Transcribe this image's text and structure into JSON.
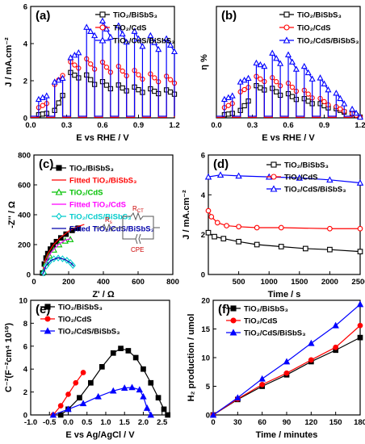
{
  "chart_data": [
    {
      "id": "a",
      "type": "line",
      "panel_label": "(a)",
      "xlabel": "E vs RHE / V",
      "ylabel": "J / mA.cm⁻²",
      "xlim": [
        0.0,
        1.2
      ],
      "ylim": [
        0,
        6
      ],
      "xticks": [
        "0.0",
        "0.3",
        "0.6",
        "0.9",
        "1.2"
      ],
      "yticks": [
        "0",
        "2",
        "4",
        "6"
      ],
      "legend_position": "top-right",
      "chopped_light": true,
      "series": [
        {
          "name": "TiO₂/BiSbS₃",
          "color": "#000000",
          "marker": "square",
          "x": [
            0.0,
            0.2,
            0.35,
            0.5,
            0.62,
            0.75,
            0.88,
            1.02,
            1.15,
            1.2
          ],
          "y": [
            0.05,
            0.4,
            2.7,
            2.2,
            1.9,
            1.75,
            1.65,
            1.55,
            1.5,
            1.5
          ]
        },
        {
          "name": "TiO₂/CdS",
          "color": "#ff0000",
          "marker": "circle",
          "x": [
            0.0,
            0.15,
            0.25,
            0.35,
            0.45,
            0.6,
            0.75,
            0.9,
            1.05,
            1.2
          ],
          "y": [
            0.2,
            1.0,
            2.6,
            3.1,
            3.2,
            3.0,
            2.75,
            2.5,
            2.3,
            2.2
          ]
        },
        {
          "name": "TiO₂/CdS/BiSbS₃",
          "color": "#0000ff",
          "marker": "triangle",
          "x": [
            0.0,
            0.15,
            0.3,
            0.45,
            0.55,
            0.68,
            0.8,
            0.95,
            1.1,
            1.2
          ],
          "y": [
            0.6,
            1.5,
            2.8,
            4.8,
            5.3,
            5.1,
            4.8,
            4.5,
            4.3,
            4.2
          ]
        }
      ]
    },
    {
      "id": "b",
      "type": "line",
      "panel_label": "(b)",
      "xlabel": "E vs RHE / V",
      "ylabel": "η %",
      "xlim": [
        0.0,
        1.2
      ],
      "ylim": [
        0,
        6
      ],
      "xticks": [
        "0.0",
        "0.3",
        "0.6",
        "0.9",
        "1.2"
      ],
      "yticks": [],
      "legend_position": "top-right",
      "chopped_light": true,
      "series": [
        {
          "name": "TiO₂/BiSbS₃",
          "color": "#000000",
          "marker": "square",
          "x": [
            0.0,
            0.2,
            0.35,
            0.5,
            0.65,
            0.8,
            0.95,
            1.1,
            1.2
          ],
          "y": [
            0.05,
            0.4,
            1.9,
            1.5,
            1.2,
            0.9,
            0.6,
            0.3,
            0.05
          ]
        },
        {
          "name": "TiO₂/CdS",
          "color": "#ff0000",
          "marker": "circle",
          "x": [
            0.0,
            0.15,
            0.3,
            0.4,
            0.55,
            0.7,
            0.85,
            1.0,
            1.2
          ],
          "y": [
            0.2,
            1.0,
            2.2,
            2.3,
            2.0,
            1.6,
            1.1,
            0.6,
            0.05
          ]
        },
        {
          "name": "TiO₂/CdS/BiSbS₃",
          "color": "#0000ff",
          "marker": "triangle",
          "x": [
            0.0,
            0.15,
            0.3,
            0.45,
            0.6,
            0.75,
            0.9,
            1.05,
            1.2
          ],
          "y": [
            0.6,
            1.5,
            2.8,
            3.5,
            3.4,
            2.7,
            2.0,
            1.0,
            0.05
          ]
        }
      ]
    },
    {
      "id": "c",
      "type": "scatter",
      "panel_label": "(c)",
      "xlabel": "Z' / Ω",
      "ylabel": "-Z'' / Ω",
      "xlim": [
        0,
        800
      ],
      "ylim": [
        0,
        800
      ],
      "xticks": [
        "0",
        "200",
        "400",
        "600",
        "800"
      ],
      "yticks": [
        "0",
        "200",
        "400",
        "600",
        "800"
      ],
      "legend_position": "top-right",
      "inset": {
        "labels": [
          "R",
          "R",
          "CPE"
        ],
        "subscripts": [
          "s",
          "CT",
          ""
        ]
      },
      "series": [
        {
          "name": "TiO₂/BiSbS₃",
          "color": "#000000",
          "marker": "square-filled",
          "x": [
            50,
            60,
            70,
            80,
            95,
            110,
            130,
            155,
            185,
            220,
            255
          ],
          "y": [
            10,
            70,
            110,
            140,
            170,
            195,
            220,
            245,
            270,
            295,
            310
          ]
        },
        {
          "name": "Fitted TiO₂/BiSbS₃",
          "color": "#ff0000",
          "marker": "none",
          "x": [
            48,
            60,
            80,
            110,
            150,
            200,
            250,
            290
          ],
          "y": [
            0,
            80,
            140,
            195,
            245,
            290,
            320,
            335
          ]
        },
        {
          "name": "TiO₂/CdS",
          "color": "#00c000",
          "marker": "triangle",
          "x": [
            55,
            70,
            90,
            115,
            145,
            180,
            210
          ],
          "y": [
            20,
            75,
            125,
            165,
            200,
            225,
            235
          ]
        },
        {
          "name": "Fitted TiO₂/CdS",
          "color": "#ff00ff",
          "marker": "none",
          "x": [
            50,
            70,
            100,
            140,
            180,
            215
          ],
          "y": [
            0,
            85,
            150,
            200,
            230,
            240
          ]
        },
        {
          "name": "TiO₂/CdS/BiSbS₃",
          "color": "#00cccc",
          "marker": "diamond",
          "x": [
            55,
            70,
            90,
            115,
            140,
            165,
            190,
            210,
            225
          ],
          "y": [
            10,
            55,
            85,
            105,
            110,
            105,
            95,
            80,
            60
          ]
        },
        {
          "name": "Fitted TiO₂/CdS/BiSbS₃",
          "color": "#0000aa",
          "marker": "none",
          "x": [
            50,
            70,
            100,
            140,
            180,
            215,
            230
          ],
          "y": [
            0,
            60,
            95,
            112,
            100,
            75,
            55
          ]
        }
      ]
    },
    {
      "id": "d",
      "type": "line",
      "panel_label": "(d)",
      "xlabel": "Time / s",
      "ylabel": "J / mA.cm⁻²",
      "xlim": [
        0,
        2500
      ],
      "ylim": [
        0,
        6
      ],
      "xticks": [
        "500",
        "1000",
        "1500",
        "2000",
        "2500"
      ],
      "yticks": [
        "0",
        "2",
        "4",
        "6"
      ],
      "legend_position": "top-right",
      "series": [
        {
          "name": "TiO₂/BiSbS₃",
          "color": "#000000",
          "marker": "square",
          "x": [
            0,
            100,
            250,
            500,
            800,
            1200,
            1600,
            2000,
            2500
          ],
          "y": [
            2.1,
            1.9,
            1.8,
            1.65,
            1.5,
            1.4,
            1.3,
            1.25,
            1.15
          ]
        },
        {
          "name": "TiO₂/CdS",
          "color": "#ff0000",
          "marker": "circle",
          "x": [
            0,
            50,
            150,
            300,
            500,
            800,
            1200,
            2000,
            2500
          ],
          "y": [
            3.2,
            2.9,
            2.6,
            2.45,
            2.4,
            2.35,
            2.35,
            2.3,
            2.3
          ]
        },
        {
          "name": "TiO₂/CdS/BiSbS₃",
          "color": "#0000ff",
          "marker": "triangle",
          "x": [
            0,
            200,
            500,
            1000,
            1500,
            2000,
            2500
          ],
          "y": [
            4.9,
            5.0,
            4.95,
            4.9,
            4.85,
            4.75,
            4.6
          ]
        }
      ]
    },
    {
      "id": "e",
      "type": "line",
      "panel_label": "(e)",
      "xlabel": "E vs Ag/AgCl / V",
      "ylabel": "C⁻²(F⁻²cm⁴ 10¹⁰)",
      "xlim": [
        -1.0,
        2.7
      ],
      "ylim": [
        0,
        10
      ],
      "xticks": [
        "-1.0",
        "-0.5",
        "0.0",
        "0.5",
        "1.0",
        "1.5",
        "2.0",
        "2.5"
      ],
      "yticks": [
        "0",
        "2",
        "4",
        "6",
        "8",
        "10"
      ],
      "legend_position": "top-left",
      "series": [
        {
          "name": "TiO₂/BiSbS₃",
          "color": "#000000",
          "marker": "square-filled",
          "x": [
            -0.2,
            0.0,
            0.3,
            0.6,
            0.9,
            1.2,
            1.4,
            1.6,
            1.8,
            2.0,
            2.2,
            2.4,
            2.55,
            2.65
          ],
          "y": [
            0.0,
            0.5,
            1.5,
            2.8,
            4.2,
            5.4,
            5.8,
            5.6,
            5.0,
            4.0,
            2.8,
            1.5,
            0.5,
            0.0
          ]
        },
        {
          "name": "TiO₂/CdS",
          "color": "#ff0000",
          "marker": "circle-filled",
          "x": [
            -0.4,
            -0.2,
            0.0,
            0.2,
            0.4
          ],
          "y": [
            0.0,
            0.8,
            1.8,
            2.8,
            3.7
          ]
        },
        {
          "name": "TiO₂/CdS/BiSbS₃",
          "color": "#0000ff",
          "marker": "triangle-filled",
          "x": [
            -0.4,
            0.0,
            0.4,
            0.8,
            1.2,
            1.5,
            1.7,
            1.9,
            2.0,
            2.1,
            2.2
          ],
          "y": [
            0.0,
            0.5,
            1.0,
            1.6,
            2.1,
            2.35,
            2.4,
            2.2,
            1.6,
            0.6,
            0.0
          ]
        }
      ]
    },
    {
      "id": "f",
      "type": "line",
      "panel_label": "(f)",
      "xlabel": "Time / minutes",
      "ylabel": "H₂ production / umol",
      "xlim": [
        0,
        180
      ],
      "ylim": [
        0,
        20
      ],
      "xticks": [
        "0",
        "30",
        "60",
        "90",
        "120",
        "150",
        "180"
      ],
      "yticks": [
        "0",
        "5",
        "10",
        "15",
        "20"
      ],
      "legend_position": "top-left",
      "series": [
        {
          "name": "TiO₂/BiSbS₃",
          "color": "#000000",
          "marker": "square-filled",
          "x": [
            0,
            30,
            60,
            90,
            120,
            150,
            180
          ],
          "y": [
            0,
            2.7,
            5.0,
            7.0,
            9.3,
            11.3,
            13.5
          ]
        },
        {
          "name": "TiO₂/CdS",
          "color": "#ff0000",
          "marker": "circle-filled",
          "x": [
            0,
            30,
            60,
            90,
            120,
            150,
            180
          ],
          "y": [
            0,
            2.8,
            5.3,
            7.3,
            9.6,
            11.8,
            15.6
          ]
        },
        {
          "name": "TiO₂/CdS/BiSbS₃",
          "color": "#0000ff",
          "marker": "triangle-filled",
          "x": [
            0,
            30,
            60,
            90,
            120,
            150,
            180
          ],
          "y": [
            0,
            3.0,
            6.3,
            9.3,
            12.5,
            15.6,
            19.3
          ]
        }
      ]
    }
  ]
}
